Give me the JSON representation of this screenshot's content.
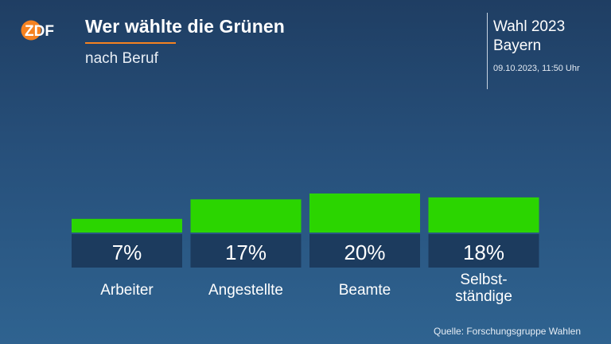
{
  "header": {
    "logo_text": "ZDF",
    "title": "Wer wählte die Grünen",
    "subtitle": "nach Beruf"
  },
  "info": {
    "line1": "Wahl 2023",
    "line2": "Bayern",
    "date": "09.10.2023, 11:50 Uhr"
  },
  "colors": {
    "bar": "#2bd500",
    "label_box": "#1c3b5e",
    "accent": "#f58220"
  },
  "chart_data": {
    "type": "bar",
    "categories": [
      "Arbeiter",
      "Angestellte",
      "Beamte",
      "Selbst-\nständige"
    ],
    "values": [
      7,
      17,
      20,
      18
    ],
    "value_labels": [
      "7%",
      "17%",
      "20%",
      "18%"
    ],
    "unit": "%"
  },
  "footer": {
    "source": "Quelle: Forschungsgruppe Wahlen"
  }
}
